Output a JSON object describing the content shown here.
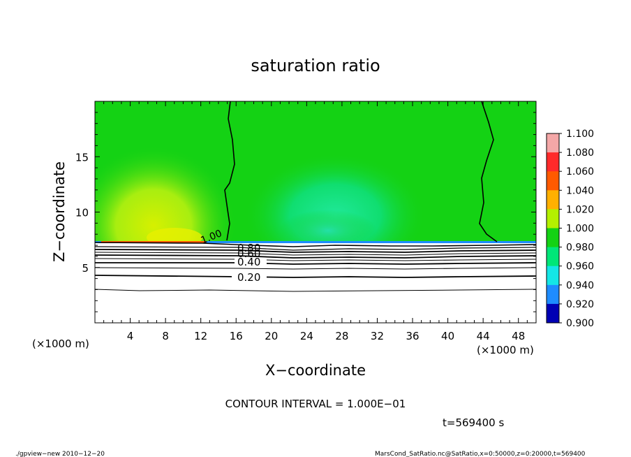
{
  "chart_data": {
    "type": "heatmap",
    "title": "saturation ratio",
    "xlabel": "X−coordinate",
    "ylabel": "Z−coordinate",
    "x_unit_label": "(×1000 m)",
    "y_unit_label": "(×1000 m)",
    "xlim": [
      0,
      50
    ],
    "ylim": [
      0,
      20
    ],
    "x_ticks": [
      4,
      8,
      12,
      16,
      20,
      24,
      28,
      32,
      36,
      40,
      44,
      48
    ],
    "y_ticks": [
      5,
      10,
      15
    ],
    "colorbar": {
      "levels": [
        "1.100",
        "1.080",
        "1.060",
        "1.040",
        "1.020",
        "1.000",
        "0.980",
        "0.960",
        "0.940",
        "0.920",
        "0.900"
      ],
      "colors": [
        "#f4a7a7",
        "#ff2a2a",
        "#ff5a00",
        "#ffb000",
        "#b4f000",
        "#14d214",
        "#00e678",
        "#14e6e6",
        "#1e8cff",
        "#0000b4",
        "#6e14c8"
      ]
    },
    "contours": [
      {
        "level": 1.0,
        "label": "1.00",
        "heavy": true
      },
      {
        "level": 0.8,
        "label": "0.80",
        "heavy": true
      },
      {
        "level": 0.6,
        "label": "0.60",
        "heavy": true
      },
      {
        "level": 0.4,
        "label": "0.40",
        "heavy": true
      },
      {
        "level": 0.2,
        "label": "0.20",
        "heavy": true
      }
    ],
    "regions": {
      "saturated_layer_top_z": 7.3,
      "background_color": "#14d214",
      "moist_region_color": "#b4f000",
      "dry_region_color": "#00e678"
    },
    "contour_interval_text": "CONTOUR INTERVAL = 1.000E−01",
    "time_text": "t=569400 s"
  },
  "footer": {
    "left": "./gpview−new   2010−12−20",
    "right": "MarsCond_SatRatio.nc@SatRatio,x=0:50000,z=0:20000,t=569400"
  }
}
